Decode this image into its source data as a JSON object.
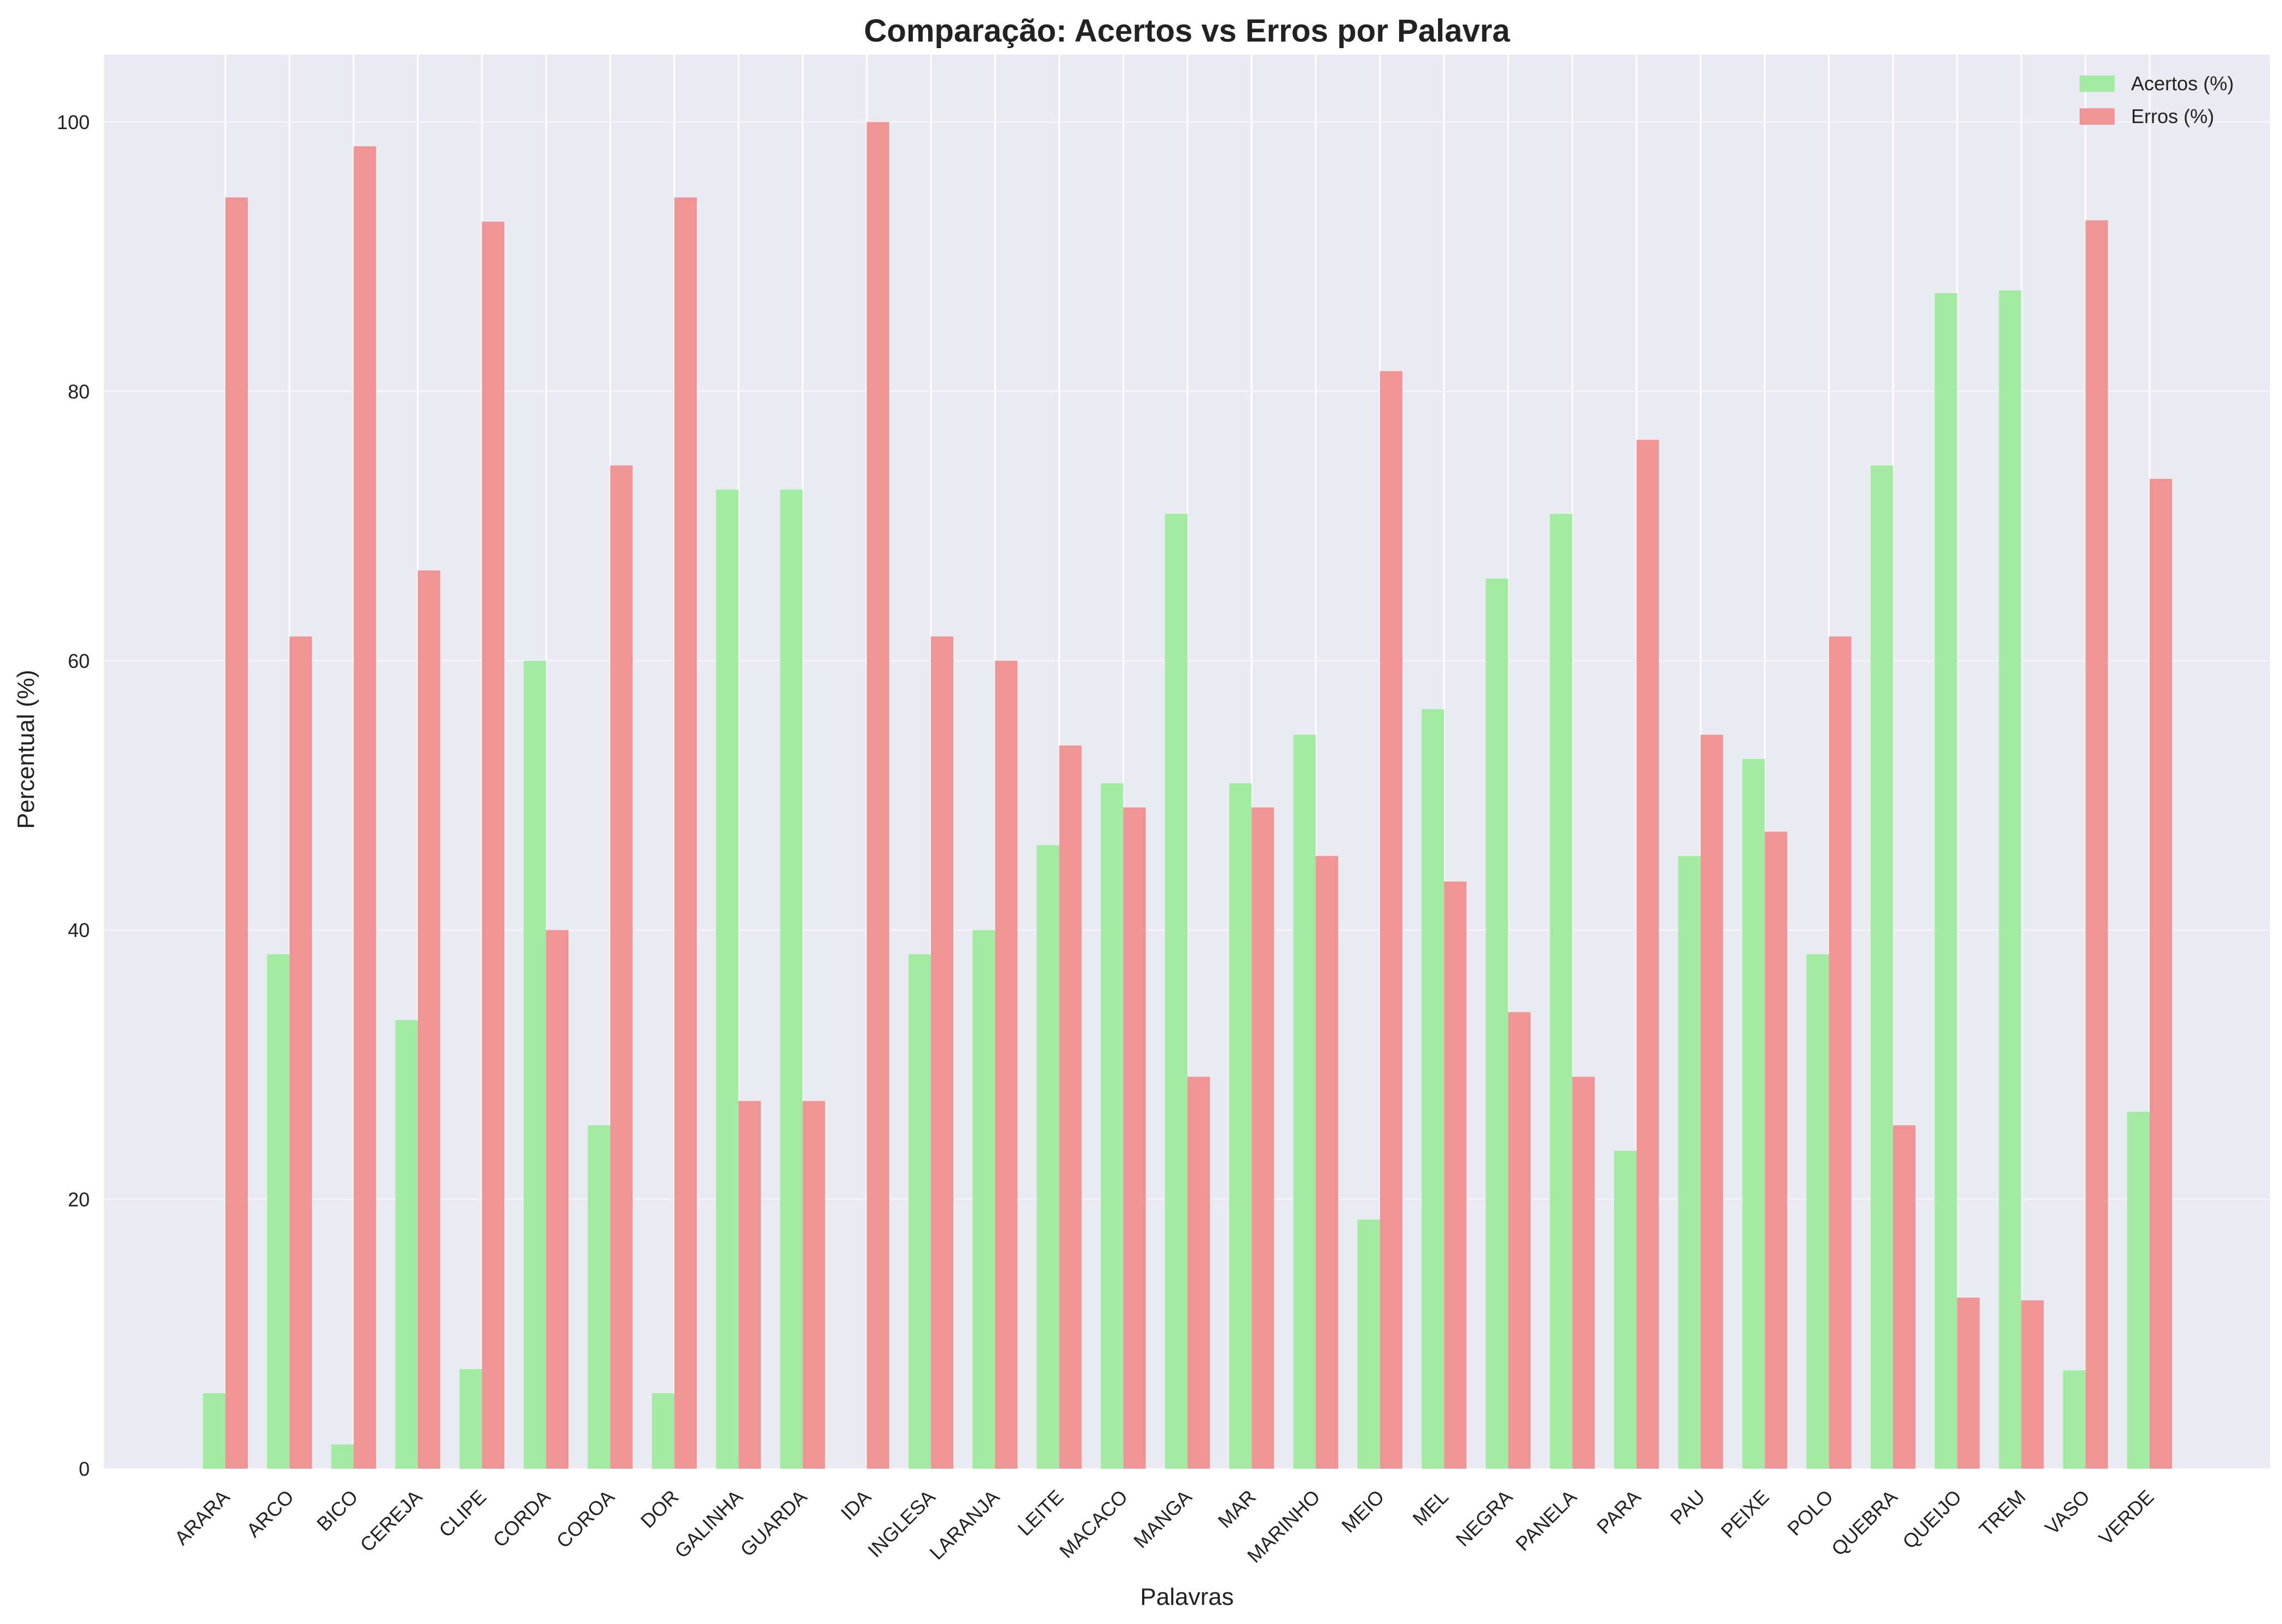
{
  "chart_data": {
    "type": "bar",
    "title": "Comparação: Acertos vs Erros por Palavra",
    "xlabel": "Palavras",
    "ylabel": "Percentual (%)",
    "ylim": [
      0,
      105
    ],
    "yticks": [
      0,
      20,
      40,
      60,
      80,
      100
    ],
    "grid": true,
    "legend_position": "top-right",
    "categories": [
      "ARARA",
      "ARCO",
      "BICO",
      "CEREJA",
      "CLIPE",
      "CORDA",
      "COROA",
      "DOR",
      "GALINHA",
      "GUARDA",
      "IDA",
      "INGLESA",
      "LARANJA",
      "LEITE",
      "MACACO",
      "MANGA",
      "MAR",
      "MARINHO",
      "MEIO",
      "MEL",
      "NEGRA",
      "PANELA",
      "PARA",
      "PAU",
      "PEIXE",
      "POLO",
      "QUEBRA",
      "QUEIJO",
      "TREM",
      "VASO",
      "VERDE"
    ],
    "series": [
      {
        "name": "Acertos (%)",
        "color": "#a3eba3",
        "values": [
          5.6,
          38.2,
          1.8,
          33.3,
          7.4,
          60.0,
          25.5,
          5.6,
          72.7,
          72.7,
          0,
          38.2,
          40.0,
          46.3,
          50.9,
          70.9,
          50.9,
          54.5,
          18.5,
          56.4,
          66.1,
          70.9,
          23.6,
          45.5,
          52.7,
          38.2,
          74.5,
          87.3,
          87.5,
          7.3,
          26.5
        ]
      },
      {
        "name": "Erros (%)",
        "color": "#ef9595",
        "values": [
          94.4,
          61.8,
          98.2,
          66.7,
          92.6,
          40.0,
          74.5,
          94.4,
          27.3,
          27.3,
          100.0,
          61.8,
          60.0,
          53.7,
          49.1,
          29.1,
          49.1,
          45.5,
          81.5,
          43.6,
          33.9,
          29.1,
          76.4,
          54.5,
          47.3,
          61.8,
          25.5,
          12.7,
          12.5,
          92.7,
          73.5
        ]
      }
    ]
  },
  "colors": {
    "plot_background": "#eaeaf2",
    "grid": "#ffffff"
  }
}
